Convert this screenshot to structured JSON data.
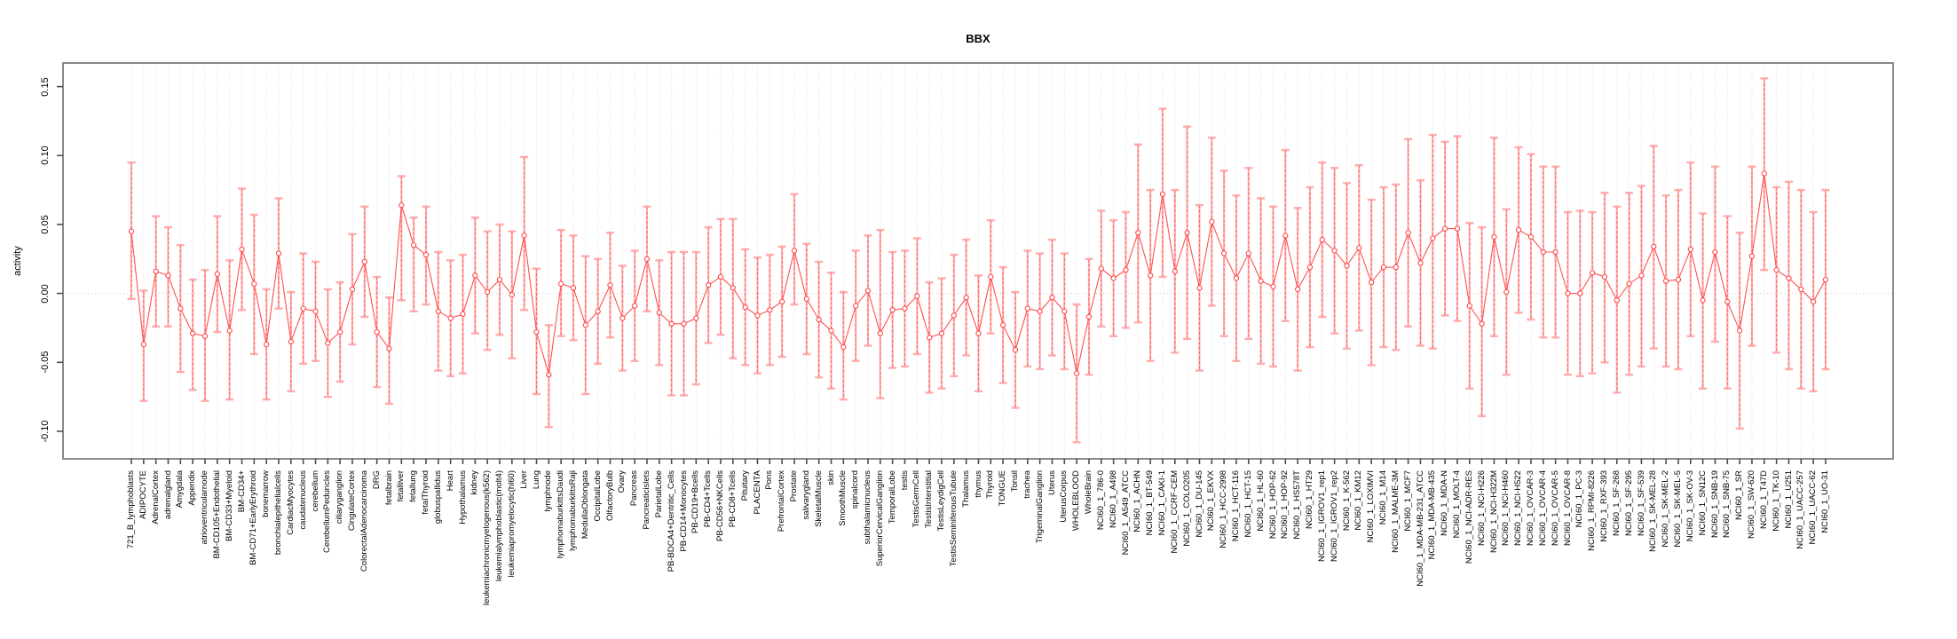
{
  "chart_data": {
    "type": "line",
    "subtype": "errorbar-line",
    "title": "BBX",
    "xlabel": "",
    "ylabel": "activity",
    "ylim": [
      -0.118,
      0.163
    ],
    "yticks": [
      0.15,
      0.1,
      0.05,
      0.0,
      -0.05,
      -0.1
    ],
    "grid": "dotted vertical gridline per category, dotted horizontal line at 0",
    "legend": "none",
    "colors": {
      "marker": "#ff4545",
      "series_line": "#ff5050",
      "errorbar_stem": "#ffa3a3",
      "errorbar_cap": "#ff9e9e",
      "errorbar_dash_overlay": "#ff5050",
      "gridline": "#dedede",
      "zero_line": "#c9c9c9",
      "box_border": "#8a8a8a",
      "tick": "#4d4d4d",
      "text": "#000000"
    },
    "point_format": [
      "label",
      "value",
      "lo",
      "hi"
    ],
    "points": [
      [
        "721_B_lymphoblasts",
        0.045,
        -0.004,
        0.095
      ],
      [
        "ADIPOCYTE",
        -0.037,
        -0.078,
        0.002
      ],
      [
        "AdrenalCortex",
        0.016,
        -0.024,
        0.056
      ],
      [
        "adrenalgland",
        0.013,
        -0.024,
        0.048
      ],
      [
        "Amygdala",
        -0.011,
        -0.057,
        0.035
      ],
      [
        "Appendix",
        -0.029,
        -0.07,
        0.01
      ],
      [
        "atrioventricularnode",
        -0.031,
        -0.078,
        0.017
      ],
      [
        "BM-CD105+Endothelial",
        0.014,
        -0.028,
        0.056
      ],
      [
        "BM-CD33+Myeloid",
        -0.027,
        -0.077,
        0.024
      ],
      [
        "BM-CD34+",
        0.032,
        -0.012,
        0.076
      ],
      [
        "BM-CD71+EarlyErythroid",
        0.007,
        -0.044,
        0.057
      ],
      [
        "bonemarrow",
        -0.037,
        -0.077,
        0.003
      ],
      [
        "bronchialepithelialcells",
        0.029,
        -0.011,
        0.069
      ],
      [
        "CardiacMyocytes",
        -0.035,
        -0.071,
        0.001
      ],
      [
        "caudatenucleus",
        -0.011,
        -0.051,
        0.029
      ],
      [
        "cerebellum",
        -0.013,
        -0.049,
        0.023
      ],
      [
        "CerebellumPeduncles",
        -0.036,
        -0.075,
        0.003
      ],
      [
        "ciliaryganglion",
        -0.028,
        -0.064,
        0.008
      ],
      [
        "CingulateCortex",
        0.003,
        -0.037,
        0.043
      ],
      [
        "ColorectalAdenocarcinoma",
        0.023,
        -0.017,
        0.063
      ],
      [
        "DRG",
        -0.028,
        -0.068,
        0.012
      ],
      [
        "fetalbrain",
        -0.04,
        -0.08,
        -0.003
      ],
      [
        "fetalliver",
        0.064,
        -0.005,
        0.085
      ],
      [
        "fetallung",
        0.035,
        -0.013,
        0.055
      ],
      [
        "fetalThyroid",
        0.028,
        -0.008,
        0.063
      ],
      [
        "globuspallidus",
        -0.013,
        -0.056,
        0.03
      ],
      [
        "Heart",
        -0.018,
        -0.06,
        0.024
      ],
      [
        "Hypothalamus",
        -0.015,
        -0.058,
        0.028
      ],
      [
        "kidney",
        0.013,
        -0.029,
        0.055
      ],
      [
        "leukemiachronicmyelogenous(k562)",
        0.001,
        -0.041,
        0.045
      ],
      [
        "leukemialymphoblastic(molt4)",
        0.01,
        -0.03,
        0.05
      ],
      [
        "leukemiapromyelocytic(hl60)",
        -0.001,
        -0.047,
        0.045
      ],
      [
        "Liver",
        0.042,
        -0.012,
        0.099
      ],
      [
        "Lung",
        -0.028,
        -0.073,
        0.018
      ],
      [
        "lymphnode",
        -0.059,
        -0.097,
        -0.023
      ],
      [
        "lymphomaburkittsDaudi",
        0.007,
        -0.031,
        0.046
      ],
      [
        "lymphomaburkittsRaji",
        0.004,
        -0.034,
        0.042
      ],
      [
        "MedullaOblongata",
        -0.023,
        -0.073,
        0.027
      ],
      [
        "OccipitalLobe",
        -0.013,
        -0.051,
        0.025
      ],
      [
        "OlfactoryBulb",
        0.006,
        -0.032,
        0.044
      ],
      [
        "Ovary",
        -0.018,
        -0.056,
        0.02
      ],
      [
        "Pancreas",
        -0.009,
        -0.049,
        0.031
      ],
      [
        "Pancreaticislets",
        0.025,
        -0.013,
        0.063
      ],
      [
        "ParietalLobe",
        -0.014,
        -0.052,
        0.024
      ],
      [
        "PB-BDCA4+Dentritic_Cells",
        -0.022,
        -0.074,
        0.03
      ],
      [
        "PB-CD14+Monocytes",
        -0.022,
        -0.074,
        0.03
      ],
      [
        "PB-CD19+Bcells",
        -0.018,
        -0.066,
        0.03
      ],
      [
        "PB-CD4+Tcells",
        0.006,
        -0.036,
        0.048
      ],
      [
        "PB-CD56+NKCells",
        0.012,
        -0.03,
        0.054
      ],
      [
        "PB-CD8+Tcells",
        0.004,
        -0.047,
        0.054
      ],
      [
        "Pituitary",
        -0.01,
        -0.052,
        0.032
      ],
      [
        "PLACENTA",
        -0.016,
        -0.058,
        0.026
      ],
      [
        "Pons",
        -0.012,
        -0.052,
        0.028
      ],
      [
        "PrefrontalCortex",
        -0.006,
        -0.046,
        0.034
      ],
      [
        "Prostate",
        0.031,
        -0.008,
        0.072
      ],
      [
        "salivarygland",
        -0.004,
        -0.044,
        0.036
      ],
      [
        "SkeletalMuscle",
        -0.019,
        -0.061,
        0.023
      ],
      [
        "skin",
        -0.027,
        -0.069,
        0.015
      ],
      [
        "SmoothMuscle",
        -0.039,
        -0.077,
        0.001
      ],
      [
        "spinalcord",
        -0.009,
        -0.049,
        0.031
      ],
      [
        "subthalamicnucleus",
        0.002,
        -0.038,
        0.042
      ],
      [
        "SuperiorCervicalGanglion",
        -0.029,
        -0.076,
        0.046
      ],
      [
        "TemporalLobe",
        -0.012,
        -0.054,
        0.03
      ],
      [
        "testis",
        -0.011,
        -0.053,
        0.031
      ],
      [
        "TestisGermCell",
        -0.002,
        -0.044,
        0.04
      ],
      [
        "TestisInterstitial",
        -0.032,
        -0.072,
        0.008
      ],
      [
        "TestisLeydigCell",
        -0.029,
        -0.069,
        0.011
      ],
      [
        "TestisSeminiferousTubule",
        -0.016,
        -0.06,
        0.028
      ],
      [
        "Thalamus",
        -0.003,
        -0.045,
        0.039
      ],
      [
        "thymus",
        -0.029,
        -0.071,
        0.013
      ],
      [
        "Thyroid",
        0.012,
        -0.029,
        0.053
      ],
      [
        "TONGUE",
        -0.023,
        -0.065,
        0.019
      ],
      [
        "Tonsil",
        -0.041,
        -0.083,
        0.001
      ],
      [
        "trachea",
        -0.011,
        -0.053,
        0.031
      ],
      [
        "TrigeminalGanglion",
        -0.013,
        -0.055,
        0.029
      ],
      [
        "Uterus",
        -0.003,
        -0.045,
        0.039
      ],
      [
        "UterusCorpus",
        -0.013,
        -0.055,
        0.029
      ],
      [
        "WHOLEBLOOD",
        -0.058,
        -0.108,
        -0.008
      ],
      [
        "WholeBrain",
        -0.017,
        -0.059,
        0.025
      ],
      [
        "NCI60_1_786-0",
        0.018,
        -0.024,
        0.06
      ],
      [
        "NCI60_1_A498",
        0.011,
        -0.031,
        0.053
      ],
      [
        "NCI60_1_A549_ATCC",
        0.017,
        -0.025,
        0.059
      ],
      [
        "NCI60_1_ACHN",
        0.044,
        -0.021,
        0.108
      ],
      [
        "NCI60_1_BT-549",
        0.013,
        -0.049,
        0.075
      ],
      [
        "NCI60_1_CAKI-1",
        0.072,
        0.012,
        0.134
      ],
      [
        "NCI60_1_CCRF-CEM",
        0.016,
        -0.043,
        0.075
      ],
      [
        "NCI60_1_COLO205",
        0.044,
        -0.033,
        0.121
      ],
      [
        "NCI60_1_DU-145",
        0.004,
        -0.056,
        0.064
      ],
      [
        "NCI60_1_EKVX",
        0.052,
        -0.009,
        0.113
      ],
      [
        "NCI60_1_HCC-2998",
        0.029,
        -0.031,
        0.089
      ],
      [
        "NCI60_1_HCT-116",
        0.011,
        -0.049,
        0.071
      ],
      [
        "NCI60_1_HCT-15",
        0.029,
        -0.033,
        0.091
      ],
      [
        "NCI60_1_HL-60",
        0.009,
        -0.051,
        0.069
      ],
      [
        "NCI60_1_HOP-62",
        0.005,
        -0.053,
        0.063
      ],
      [
        "NCI60_1_HOP-92",
        0.042,
        -0.02,
        0.104
      ],
      [
        "NCI60_1_HS578T",
        0.003,
        -0.056,
        0.062
      ],
      [
        "NCI60_1_HT29",
        0.019,
        -0.039,
        0.077
      ],
      [
        "NCI60_1_IGROV1_rep1",
        0.039,
        -0.017,
        0.095
      ],
      [
        "NCI60_1_IGROV1_rep2",
        0.031,
        -0.029,
        0.091
      ],
      [
        "NCI60_1_K-562",
        0.02,
        -0.04,
        0.08
      ],
      [
        "NCI60_1_KM12",
        0.033,
        -0.027,
        0.093
      ],
      [
        "NCI60_1_LOXIMVI",
        0.008,
        -0.052,
        0.068
      ],
      [
        "NCI60_1_M14",
        0.019,
        -0.039,
        0.077
      ],
      [
        "NCI60_1_MALME-3M",
        0.019,
        -0.041,
        0.079
      ],
      [
        "NCI60_1_MCF7",
        0.044,
        -0.024,
        0.112
      ],
      [
        "NCI60_1_MDA-MB-231_ATCC",
        0.022,
        -0.038,
        0.082
      ],
      [
        "NCI60_1_MDA-MB-435",
        0.04,
        -0.04,
        0.115
      ],
      [
        "NCI60_1_MDA-N",
        0.047,
        -0.016,
        0.11
      ],
      [
        "NCI60_1_MOLT-4",
        0.047,
        -0.02,
        0.114
      ],
      [
        "NCI60_1_NCI-ADR-RES",
        -0.009,
        -0.069,
        0.051
      ],
      [
        "NCI60_1_NCI-H226",
        -0.022,
        -0.089,
        0.048
      ],
      [
        "NCI60_1_NCI-H322M",
        0.041,
        -0.031,
        0.113
      ],
      [
        "NCI60_1_NCI-H460",
        0.001,
        -0.059,
        0.061
      ],
      [
        "NCI60_1_NCI-H522",
        0.046,
        -0.014,
        0.106
      ],
      [
        "NCI60_1_OVCAR-3",
        0.041,
        -0.019,
        0.101
      ],
      [
        "NCI60_1_OVCAR-4",
        0.03,
        -0.032,
        0.092
      ],
      [
        "NCI60_1_OVCAR-5",
        0.03,
        -0.032,
        0.092
      ],
      [
        "NCI60_1_OVCAR-8",
        0.0,
        -0.059,
        0.059
      ],
      [
        "NCI60_1_PC-3",
        0.0,
        -0.06,
        0.06
      ],
      [
        "NCI60_1_RPMI-8226",
        0.015,
        -0.058,
        0.059
      ],
      [
        "NCI60_1_RXF-393",
        0.012,
        -0.05,
        0.073
      ],
      [
        "NCI60_1_SF-268",
        -0.005,
        -0.072,
        0.063
      ],
      [
        "NCI60_1_SF-295",
        0.007,
        -0.059,
        0.073
      ],
      [
        "NCI60_1_SF-539",
        0.013,
        -0.053,
        0.078
      ],
      [
        "NCI60_1_SK-MEL-28",
        0.034,
        -0.04,
        0.107
      ],
      [
        "NCI60_1_SK-MEL-2",
        0.009,
        -0.053,
        0.071
      ],
      [
        "NCI60_1_SK-MEL-5",
        0.01,
        -0.055,
        0.075
      ],
      [
        "NCI60_1_SK-OV-3",
        0.032,
        -0.031,
        0.095
      ],
      [
        "NCI60_1_SN12C",
        -0.005,
        -0.069,
        0.058
      ],
      [
        "NCI60_1_SNB-19",
        0.03,
        -0.035,
        0.092
      ],
      [
        "NCI60_1_SNB-75",
        -0.006,
        -0.069,
        0.056
      ],
      [
        "NCI60_1_SR",
        -0.027,
        -0.098,
        0.044
      ],
      [
        "NCI60_1_SW-620",
        0.027,
        -0.038,
        0.092
      ],
      [
        "NCI60_1_T47D",
        0.087,
        0.017,
        0.156
      ],
      [
        "NCI60_1_TK-10",
        0.017,
        -0.043,
        0.077
      ],
      [
        "NCI60_1_U251",
        0.011,
        -0.055,
        0.081
      ],
      [
        "NCI60_1_UACC-257",
        0.003,
        -0.069,
        0.075
      ],
      [
        "NCI60_1_UACC-62",
        -0.006,
        -0.071,
        0.059
      ],
      [
        "NCI60_1_UO-31",
        0.01,
        -0.055,
        0.075
      ]
    ]
  }
}
